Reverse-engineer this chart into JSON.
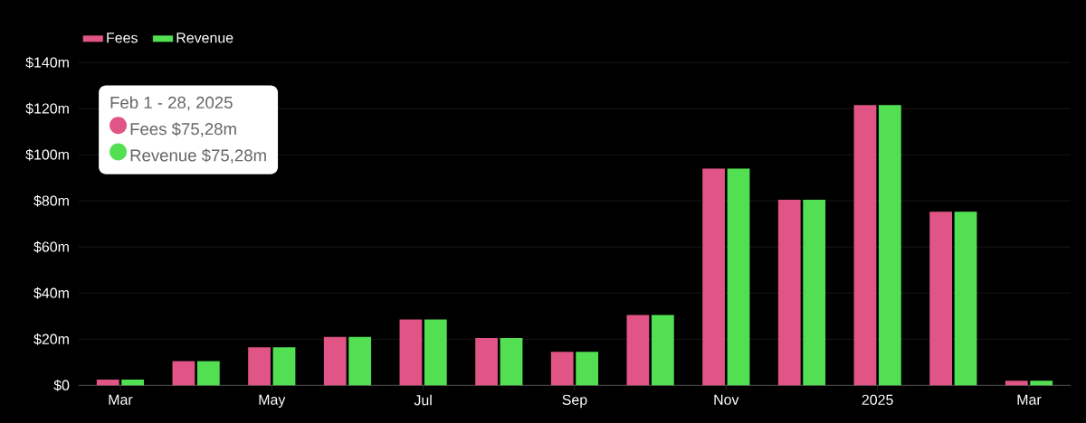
{
  "chart_data": {
    "type": "bar",
    "categories": [
      "Mar",
      null,
      "May",
      null,
      "Jul",
      null,
      "Sep",
      null,
      "Nov",
      null,
      "2025",
      null,
      "Mar"
    ],
    "series": [
      {
        "name": "Fees",
        "color": "#e05585",
        "values": [
          2.5,
          10.5,
          16.5,
          21,
          28.5,
          20.5,
          14.5,
          30.5,
          94,
          80.5,
          121.5,
          75.28,
          2
        ]
      },
      {
        "name": "Revenue",
        "color": "#52e052",
        "values": [
          2.5,
          10.5,
          16.5,
          21,
          28.5,
          20.5,
          14.5,
          30.5,
          94,
          80.5,
          121.5,
          75.28,
          2
        ]
      }
    ],
    "ylim": [
      0,
      140
    ],
    "yticks": [
      {
        "value": 0,
        "label": "$0"
      },
      {
        "value": 20,
        "label": "$20m"
      },
      {
        "value": 40,
        "label": "$40m"
      },
      {
        "value": 60,
        "label": "$60m"
      },
      {
        "value": 80,
        "label": "$80m"
      },
      {
        "value": 100,
        "label": "$100m"
      },
      {
        "value": 120,
        "label": "$120m"
      },
      {
        "value": 140,
        "label": "$140m"
      }
    ],
    "grid": "y",
    "legend": "top left",
    "annotations": [
      "Feb 1 - 28, 2025",
      "Fees  $75,28m",
      "Revenue  $75,28m"
    ]
  }
}
